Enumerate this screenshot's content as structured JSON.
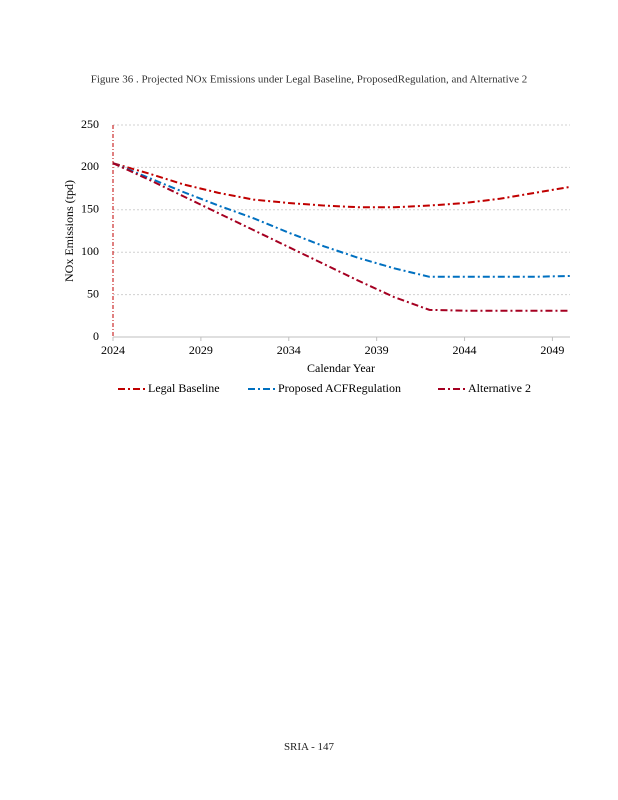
{
  "chart_data": {
    "type": "line",
    "title": "Figure 36 . Projected NOx Emissions under Legal Baseline, ProposedRegulation, and Alternative 2",
    "x_label": "Calendar Year",
    "y_label": "NOx Emissions (tpd)",
    "x": [
      2024,
      2026,
      2028,
      2030,
      2032,
      2034,
      2036,
      2038,
      2040,
      2042,
      2044,
      2046,
      2048,
      2050
    ],
    "series": [
      {
        "name": "Legal Baseline",
        "color": "#c00000",
        "values": [
          205,
          193,
          180,
          170,
          162,
          158,
          155,
          153,
          153,
          155,
          158,
          163,
          170,
          177
        ]
      },
      {
        "name": "Proposed ACFRegulation",
        "color": "#0070c0",
        "values": [
          205,
          188,
          171,
          155,
          140,
          123,
          107,
          93,
          81,
          71,
          71,
          71,
          71,
          72
        ]
      },
      {
        "name": "Alternative 2",
        "color": "#a50021",
        "values": [
          205,
          186,
          166,
          146,
          126,
          106,
          86,
          66,
          47,
          32,
          31,
          31,
          31,
          31
        ]
      }
    ],
    "xlim": [
      2024,
      2050
    ],
    "xticks": [
      2024,
      2029,
      2034,
      2039,
      2044,
      2049
    ],
    "ylim": [
      0,
      250
    ],
    "yticks": [
      0,
      50,
      100,
      150,
      200,
      250
    ],
    "grid": true,
    "legend": "bottom"
  },
  "footer": "SRIA - 147"
}
